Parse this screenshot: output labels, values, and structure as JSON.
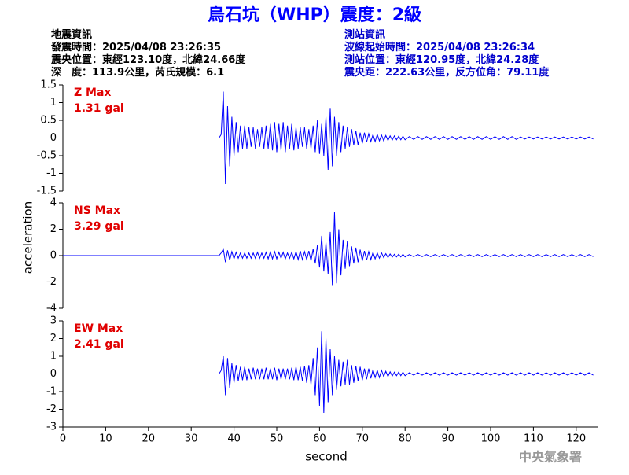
{
  "title": "烏石坑（WHP）震度：2級",
  "left_info": [
    "地震資訊",
    "發震時間：2025/04/08 23:26:35",
    "震央位置：東經123.10度，北緯24.66度",
    "深　度：113.9公里，芮氏規模：6.1"
  ],
  "right_info": [
    "測站資訊",
    "波線起始時間：2025/04/08 23:26:34",
    "測站位置：東經120.95度，北緯24.28度",
    "震央距：222.63公里，反方位角：79.11度"
  ],
  "footer": "中央氣象署",
  "chart_data": {
    "type": "line",
    "xlabel": "second",
    "ylabel": "acceleration",
    "xlim": [
      0,
      125
    ],
    "xticks": [
      0,
      10,
      20,
      30,
      40,
      50,
      60,
      70,
      80,
      90,
      100,
      110,
      120
    ],
    "x": [
      0,
      36.5,
      37,
      37.5,
      38,
      38.5,
      39,
      39.5,
      40,
      40.5,
      41,
      41.5,
      42,
      42.5,
      43,
      43.5,
      44,
      44.5,
      45,
      45.5,
      46,
      46.5,
      47,
      47.5,
      48,
      48.5,
      49,
      49.5,
      50,
      50.5,
      51,
      51.5,
      52,
      52.5,
      53,
      53.5,
      54,
      54.5,
      55,
      55.5,
      56,
      56.5,
      57,
      57.5,
      58,
      58.5,
      59,
      59.5,
      60,
      60.5,
      61,
      61.5,
      62,
      62.5,
      63,
      63.5,
      64,
      64.5,
      65,
      65.5,
      66,
      66.5,
      67,
      67.5,
      68,
      68.5,
      69,
      69.5,
      70,
      70.5,
      71,
      71.5,
      72,
      72.5,
      73,
      73.5,
      74,
      74.5,
      75,
      75.5,
      76,
      76.5,
      77,
      77.5,
      78,
      78.5,
      79,
      79.5,
      80,
      81,
      82,
      83,
      84,
      85,
      86,
      87,
      88,
      89,
      90,
      91,
      92,
      93,
      94,
      95,
      96,
      97,
      98,
      99,
      100,
      101,
      102,
      103,
      104,
      105,
      106,
      107,
      108,
      109,
      110,
      111,
      112,
      113,
      114,
      115,
      116,
      117,
      118,
      119,
      120,
      121,
      122,
      123,
      124,
      125
    ],
    "panels": [
      {
        "label": "Z Max",
        "max_label": "1.31 gal",
        "color": "#0000ff",
        "ylim": [
          -1.5,
          1.5
        ],
        "yticks": [
          -1.5,
          -1,
          -0.5,
          0,
          0.5,
          1,
          1.5
        ],
        "values": [
          0,
          0,
          0.1,
          1.31,
          -1.3,
          0.9,
          -0.8,
          0.6,
          -0.5,
          0.45,
          -0.4,
          0.35,
          -0.3,
          0.35,
          -0.3,
          0.3,
          -0.25,
          0.3,
          -0.3,
          0.25,
          -0.25,
          0.3,
          -0.3,
          0.35,
          -0.3,
          0.4,
          -0.35,
          0.45,
          -0.4,
          0.4,
          -0.35,
          0.45,
          -0.4,
          0.35,
          -0.3,
          0.4,
          -0.35,
          0.3,
          -0.3,
          0.3,
          -0.25,
          0.3,
          -0.3,
          0.25,
          -0.3,
          0.35,
          -0.4,
          0.5,
          -0.45,
          0.4,
          -0.5,
          0.6,
          -0.9,
          0.85,
          -0.8,
          0.6,
          -0.5,
          0.45,
          -0.4,
          0.35,
          -0.3,
          0.3,
          -0.25,
          0.25,
          -0.2,
          0.2,
          -0.2,
          0.15,
          -0.15,
          0.15,
          -0.12,
          0.12,
          -0.1,
          0.1,
          -0.1,
          0.1,
          -0.08,
          0.08,
          -0.08,
          0.07,
          -0.07,
          0.06,
          -0.06,
          0.06,
          -0.05,
          0.05,
          -0.05,
          0.05,
          -0.05,
          0.04,
          -0.04,
          0.04,
          -0.04,
          0.04,
          -0.04,
          0.04,
          -0.04,
          0.04,
          -0.04,
          0.04,
          -0.04,
          0.04,
          -0.04,
          0.04,
          -0.04,
          0.04,
          -0.04,
          0.04,
          -0.04,
          0.04,
          -0.04,
          0.04,
          -0.04,
          0.04,
          -0.04,
          0.03,
          -0.03,
          0.03,
          -0.03,
          0.03,
          -0.03,
          0.03,
          -0.03,
          0.03,
          -0.03,
          0.03,
          -0.03,
          0.03,
          -0.03,
          0.03,
          -0.03,
          0.03,
          -0.03
        ]
      },
      {
        "label": "NS Max",
        "max_label": "3.29 gal",
        "color": "#0000ff",
        "ylim": [
          -4,
          4
        ],
        "yticks": [
          -4,
          -2,
          0,
          2,
          4
        ],
        "values": [
          0,
          0,
          0.2,
          0.5,
          -0.5,
          0.4,
          -0.35,
          0.3,
          -0.25,
          0.25,
          -0.2,
          0.2,
          -0.2,
          0.2,
          -0.2,
          0.2,
          -0.2,
          0.2,
          -0.2,
          0.25,
          -0.2,
          0.2,
          -0.2,
          0.25,
          -0.25,
          0.3,
          -0.25,
          0.3,
          -0.25,
          0.25,
          -0.2,
          0.25,
          -0.25,
          0.2,
          -0.2,
          0.25,
          -0.25,
          0.3,
          -0.3,
          0.35,
          -0.3,
          0.3,
          -0.3,
          0.35,
          -0.4,
          0.5,
          -0.6,
          0.8,
          -0.9,
          1.5,
          -1.2,
          1.0,
          -1.4,
          1.8,
          -2.3,
          3.29,
          -2.1,
          2.0,
          -1.5,
          1.2,
          -1.0,
          1.1,
          -0.8,
          0.7,
          -0.6,
          0.6,
          -0.5,
          0.45,
          -0.4,
          0.35,
          -0.35,
          0.3,
          -0.3,
          0.25,
          -0.25,
          0.2,
          -0.2,
          0.2,
          -0.15,
          0.15,
          -0.15,
          0.12,
          -0.12,
          0.1,
          -0.1,
          0.1,
          -0.1,
          0.1,
          -0.1,
          0.08,
          -0.08,
          0.08,
          -0.08,
          0.08,
          -0.08,
          0.08,
          -0.08,
          0.08,
          -0.08,
          0.08,
          -0.08,
          0.08,
          -0.08,
          0.08,
          -0.08,
          0.08,
          -0.08,
          0.08,
          -0.08,
          0.08,
          -0.08,
          0.08,
          -0.08,
          0.08,
          -0.08,
          0.08,
          -0.08,
          0.08,
          -0.08,
          0.08,
          -0.08,
          0.08,
          -0.08,
          0.08,
          -0.08,
          0.08,
          -0.08,
          0.08,
          -0.08,
          0.08,
          -0.08,
          0.08,
          -0.08
        ]
      },
      {
        "label": "EW Max",
        "max_label": "2.41 gal",
        "color": "#0000ff",
        "ylim": [
          -3,
          3
        ],
        "yticks": [
          -3,
          -2,
          -1,
          0,
          1,
          2,
          3
        ],
        "values": [
          0,
          0,
          0.2,
          1.0,
          -1.2,
          0.9,
          -0.8,
          0.6,
          -0.5,
          0.5,
          -0.4,
          0.4,
          -0.35,
          0.4,
          -0.35,
          0.3,
          -0.3,
          0.35,
          -0.3,
          0.3,
          -0.3,
          0.3,
          -0.3,
          0.35,
          -0.3,
          0.3,
          -0.3,
          0.35,
          -0.35,
          0.3,
          -0.3,
          0.3,
          -0.3,
          0.3,
          -0.3,
          0.35,
          -0.35,
          0.4,
          -0.35,
          0.4,
          -0.4,
          0.45,
          -0.5,
          0.5,
          -0.6,
          0.9,
          -1.2,
          1.5,
          -1.8,
          2.41,
          -2.2,
          2.0,
          -1.6,
          1.4,
          -1.2,
          1.0,
          -0.9,
          0.8,
          -0.7,
          0.7,
          -0.6,
          0.8,
          -0.6,
          0.5,
          -0.5,
          0.45,
          -0.4,
          0.4,
          -0.35,
          0.3,
          -0.3,
          0.3,
          -0.25,
          0.25,
          -0.2,
          0.2,
          -0.2,
          0.2,
          -0.15,
          0.15,
          -0.15,
          0.12,
          -0.12,
          0.1,
          -0.1,
          0.1,
          -0.1,
          0.1,
          -0.1,
          0.07,
          -0.07,
          0.07,
          -0.07,
          0.07,
          -0.07,
          0.07,
          -0.07,
          0.07,
          -0.07,
          0.07,
          -0.07,
          0.07,
          -0.07,
          0.07,
          -0.07,
          0.07,
          -0.07,
          0.07,
          -0.07,
          0.07,
          -0.07,
          0.07,
          -0.07,
          0.07,
          -0.07,
          0.07,
          -0.07,
          0.07,
          -0.07,
          0.07,
          -0.07,
          0.07,
          -0.07,
          0.07,
          -0.07,
          0.07,
          -0.07,
          0.07,
          -0.07,
          0.07,
          -0.07,
          0.07,
          -0.07
        ]
      }
    ]
  }
}
